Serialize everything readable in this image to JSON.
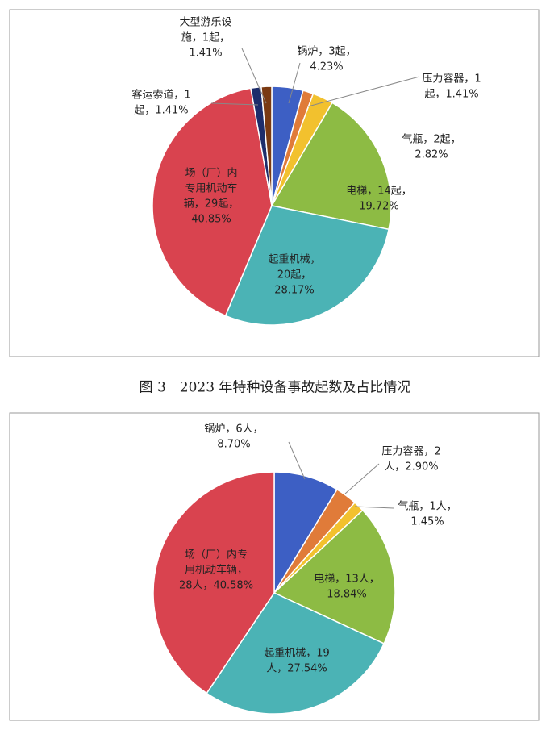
{
  "caption": "图 3　2023 年特种设备事故起数及占比情况",
  "chart_data": [
    {
      "type": "pie",
      "values": [
        4.23,
        1.41,
        2.82,
        19.72,
        28.17,
        40.85,
        1.41,
        1.41
      ],
      "value_labels": [
        [
          "锅炉，3起，",
          "4.23%"
        ],
        [
          "压力容器，1",
          "起，1.41%"
        ],
        [
          "气瓶，2起，",
          "2.82%"
        ],
        [
          "电梯，14起，",
          "19.72%"
        ],
        [
          "起重机械，",
          "20起，",
          "28.17%"
        ],
        [
          "场（厂）内",
          "专用机动车",
          "辆，29起，",
          "40.85%"
        ],
        [
          "客运索道，1",
          "起，1.41%"
        ],
        [
          "大型游乐设",
          "施，1起，",
          "1.41%"
        ]
      ],
      "colors": [
        "#3d5fc4",
        "#e07b39",
        "#f2c12e",
        "#8dbb44",
        "#4bb3b5",
        "#d9434f",
        "#1d2d6b",
        "#7a3a12"
      ]
    },
    {
      "type": "pie",
      "values": [
        8.7,
        2.9,
        1.45,
        18.84,
        27.54,
        40.58
      ],
      "value_labels": [
        [
          "锅炉，6人，",
          "8.70%"
        ],
        [
          "压力容器，2",
          "人，2.90%"
        ],
        [
          "气瓶，1人，",
          "1.45%"
        ],
        [
          "电梯，13人，",
          "18.84%"
        ],
        [
          "起重机械，19",
          "人，27.54%"
        ],
        [
          "场（厂）内专",
          "用机动车辆，",
          "28人，40.58%"
        ]
      ],
      "colors": [
        "#3d5fc4",
        "#e07b39",
        "#f2c12e",
        "#8dbb44",
        "#4bb3b5",
        "#d9434f"
      ]
    }
  ]
}
